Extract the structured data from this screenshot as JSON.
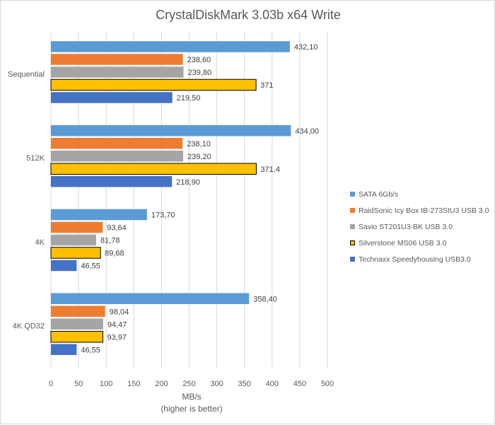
{
  "chart_data": {
    "type": "bar",
    "orientation": "horizontal",
    "title": "CrystalDiskMark 3.03b x64 Write",
    "xlabel": "MB/s",
    "xlabel_sub": "(higher is better)",
    "ylabel": "",
    "xlim": [
      0,
      500
    ],
    "xticks": [
      0,
      50,
      100,
      150,
      200,
      250,
      300,
      350,
      400,
      450,
      500
    ],
    "grid": true,
    "legend_position": "right",
    "categories": [
      "Sequential",
      "512K",
      "4K",
      "4K QD32"
    ],
    "series": [
      {
        "name": "SATA 6Gb/s",
        "color": "#5b9bd5",
        "outlined": false,
        "values": [
          432.1,
          434.0,
          173.7,
          358.4
        ],
        "labels": [
          "432,10",
          "434,00",
          "173,70",
          "358,40"
        ]
      },
      {
        "name": "RaidSonic Icy Box IB-273StU3 USB 3.0",
        "color": "#ed7d31",
        "outlined": false,
        "values": [
          238.6,
          238.1,
          93.64,
          98.04
        ],
        "labels": [
          "238,60",
          "238,10",
          "93,64",
          "98,04"
        ]
      },
      {
        "name": "Savio ST201U3-BK USB 3.0",
        "color": "#a5a5a5",
        "outlined": false,
        "values": [
          239.8,
          239.2,
          81.78,
          94.47
        ],
        "labels": [
          "239,80",
          "239,20",
          "81,78",
          "94,47"
        ]
      },
      {
        "name": "Silverstone MS06 USB 3.0",
        "color": "#ffc000",
        "outlined": true,
        "values": [
          371,
          371.4,
          89.68,
          93.97
        ],
        "labels": [
          "371",
          "371,4",
          "89,68",
          "93,97"
        ]
      },
      {
        "name": "Technaxx Speedyhousing USB3.0",
        "color": "#4472c4",
        "outlined": false,
        "values": [
          219.5,
          218.9,
          46.55,
          46.55
        ],
        "labels": [
          "219,50",
          "218,90",
          "46,55",
          "46,55"
        ]
      }
    ]
  }
}
